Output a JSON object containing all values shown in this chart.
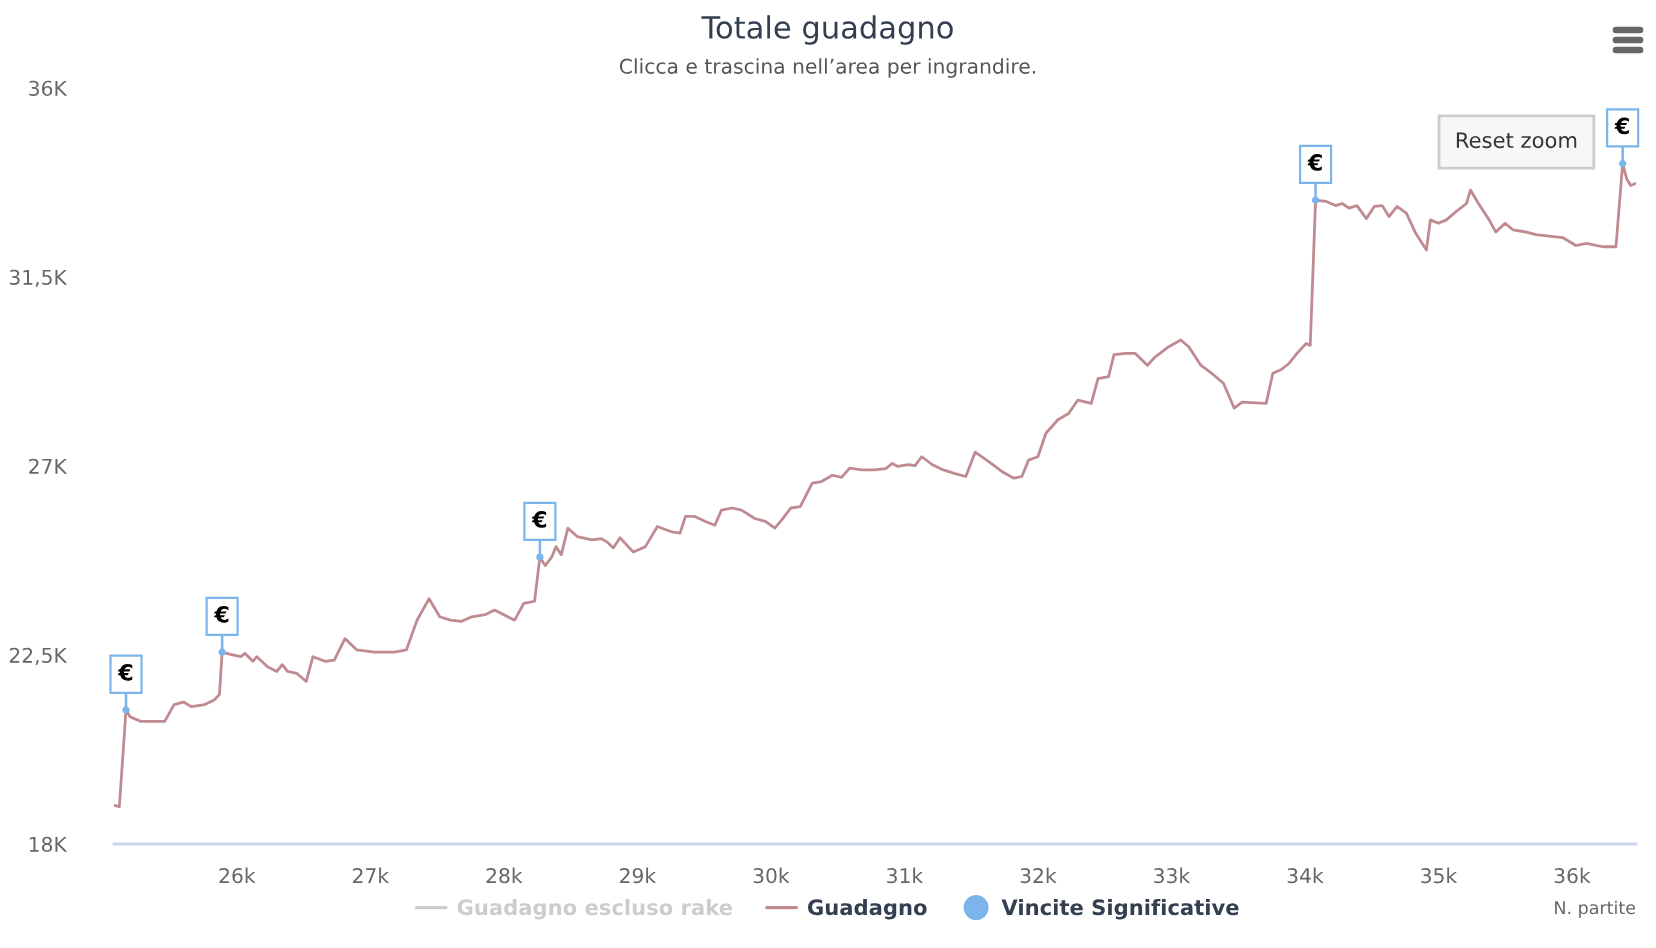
{
  "chart_data": {
    "type": "line",
    "title": "Totale guadagno",
    "subtitle": "Clicca e trascina nell’area per ingrandire.",
    "xlabel": "N. partite",
    "x": [
      25080,
      25120,
      25170,
      25200,
      25280,
      25460,
      25530,
      25600,
      25660,
      25760,
      25830,
      25870,
      25890,
      25960,
      26030,
      26060,
      26120,
      26150,
      26230,
      26300,
      26340,
      26380,
      26450,
      26520,
      26570,
      26660,
      26730,
      26810,
      26900,
      27030,
      27180,
      27270,
      27350,
      27440,
      27520,
      27600,
      27680,
      27760,
      27860,
      27930,
      28080,
      28150,
      28230,
      28270,
      28310,
      28360,
      28390,
      28430,
      28480,
      28550,
      28660,
      28730,
      28770,
      28820,
      28870,
      28970,
      29060,
      29150,
      29260,
      29320,
      29360,
      29430,
      29510,
      29580,
      29630,
      29710,
      29780,
      29880,
      29960,
      30030,
      30080,
      30150,
      30220,
      30310,
      30380,
      30460,
      30530,
      30590,
      30680,
      30780,
      30860,
      30910,
      30950,
      31030,
      31080,
      31130,
      31210,
      31280,
      31380,
      31460,
      31530,
      31630,
      31730,
      31820,
      31880,
      31930,
      32000,
      32060,
      32150,
      32230,
      32300,
      32400,
      32450,
      32530,
      32570,
      32660,
      32730,
      32820,
      32880,
      32980,
      33070,
      33130,
      33220,
      33300,
      33390,
      33470,
      33530,
      33710,
      33760,
      33820,
      33880,
      33940,
      34010,
      34040,
      34080,
      34160,
      34230,
      34280,
      34330,
      34390,
      34460,
      34520,
      34580,
      34630,
      34690,
      34760,
      34830,
      34910,
      34940,
      35000,
      35060,
      35130,
      35210,
      35240,
      35300,
      35380,
      35430,
      35500,
      35560,
      35660,
      35730,
      35930,
      36030,
      36110,
      36230,
      36330,
      36380,
      36410,
      36440,
      36480
    ],
    "series": [
      {
        "name": "Guadagno escluso rake",
        "color": "#cccccc",
        "values": [
          null,
          null,
          null,
          null,
          null,
          null,
          null,
          null,
          null,
          null,
          null,
          null,
          null,
          null,
          null,
          null,
          null,
          null,
          null,
          null,
          null,
          null,
          null,
          null,
          null,
          null,
          null,
          null,
          null,
          null,
          null,
          null,
          null,
          null,
          null,
          null,
          null,
          null,
          null,
          null,
          null,
          null,
          null,
          null,
          null,
          null,
          null,
          null,
          null,
          null,
          null,
          null,
          null,
          null,
          null,
          null,
          null,
          null,
          null,
          null,
          null,
          null,
          null,
          null,
          null,
          null,
          null,
          null,
          null,
          null,
          null,
          null,
          null,
          null,
          null,
          null,
          null,
          null,
          null,
          null,
          null,
          null,
          null,
          null,
          null,
          null,
          null,
          null,
          null,
          null,
          null,
          null,
          null,
          null,
          null,
          null,
          null,
          null,
          null,
          null,
          null,
          null,
          null,
          null,
          null,
          null,
          null,
          null,
          null,
          null,
          null,
          null,
          null,
          null,
          null,
          null,
          null,
          null,
          null,
          null,
          null,
          null,
          null,
          null,
          null,
          null,
          null,
          null,
          null,
          null,
          null,
          null,
          null,
          null,
          null,
          null,
          null,
          null,
          null,
          null,
          null,
          null,
          null,
          null,
          null,
          null,
          null,
          null,
          null,
          null,
          null,
          null,
          null,
          null,
          null,
          null,
          null,
          null,
          null,
          null
        ]
      },
      {
        "name": "Guadagno",
        "color": "#bf8a90",
        "values": [
          18920,
          18890,
          21190,
          21030,
          20920,
          20920,
          21320,
          21380,
          21270,
          21320,
          21430,
          21560,
          22570,
          22510,
          22460,
          22540,
          22350,
          22460,
          22220,
          22110,
          22270,
          22110,
          22060,
          21870,
          22460,
          22350,
          22380,
          22890,
          22620,
          22570,
          22570,
          22620,
          23330,
          23840,
          23410,
          23330,
          23300,
          23410,
          23460,
          23570,
          23330,
          23730,
          23780,
          24830,
          24630,
          24840,
          25080,
          24890,
          25520,
          25320,
          25240,
          25270,
          25200,
          25050,
          25290,
          24950,
          25080,
          25560,
          25430,
          25400,
          25800,
          25800,
          25680,
          25590,
          25950,
          26000,
          25950,
          25750,
          25680,
          25520,
          25710,
          26000,
          26030,
          26590,
          26630,
          26780,
          26730,
          26950,
          26910,
          26910,
          26940,
          27060,
          26990,
          27030,
          27010,
          27220,
          27030,
          26920,
          26820,
          26750,
          27330,
          27110,
          26870,
          26710,
          26750,
          27140,
          27220,
          27780,
          28100,
          28250,
          28570,
          28490,
          29080,
          29130,
          29650,
          29680,
          29680,
          29400,
          29600,
          29840,
          30000,
          29840,
          29400,
          29210,
          28970,
          28380,
          28520,
          28490,
          29210,
          29290,
          29440,
          29680,
          29920,
          29870,
          33330,
          33300,
          33200,
          33250,
          33140,
          33200,
          32890,
          33180,
          33200,
          32940,
          33180,
          33020,
          32540,
          32140,
          32860,
          32780,
          32860,
          33050,
          33250,
          33570,
          33250,
          32860,
          32570,
          32780,
          32620,
          32570,
          32510,
          32440,
          32250,
          32300,
          32220,
          32220,
          34200,
          33840,
          33680,
          33730
        ]
      },
      {
        "name": "Vincite Significative",
        "type": "scatter",
        "color": "#7cb5ec",
        "x": [
          25170,
          25890,
          28270,
          34080,
          36380
        ],
        "values": [
          21190,
          22570,
          24830,
          33330,
          34200
        ],
        "value_labels": [
          "€",
          "€",
          "€",
          "€",
          "€"
        ]
      }
    ],
    "xlim": [
      25080,
      36480
    ],
    "ylim": [
      18000,
      36000
    ],
    "xticks": [
      {
        "value": 26000,
        "label": "26k"
      },
      {
        "value": 27000,
        "label": "27k"
      },
      {
        "value": 28000,
        "label": "28k"
      },
      {
        "value": 29000,
        "label": "29k"
      },
      {
        "value": 30000,
        "label": "30k"
      },
      {
        "value": 31000,
        "label": "31k"
      },
      {
        "value": 32000,
        "label": "32k"
      },
      {
        "value": 33000,
        "label": "33k"
      },
      {
        "value": 34000,
        "label": "34k"
      },
      {
        "value": 35000,
        "label": "35k"
      },
      {
        "value": 36000,
        "label": "36k"
      }
    ],
    "yticks": [
      {
        "value": 18000,
        "label": "18K"
      },
      {
        "value": 22500,
        "label": "22,5K"
      },
      {
        "value": 27000,
        "label": "27K"
      },
      {
        "value": 31500,
        "label": "31,5K"
      },
      {
        "value": 36000,
        "label": "36K"
      }
    ],
    "legend": "bottom",
    "annotations": [
      "Reset zoom"
    ]
  }
}
